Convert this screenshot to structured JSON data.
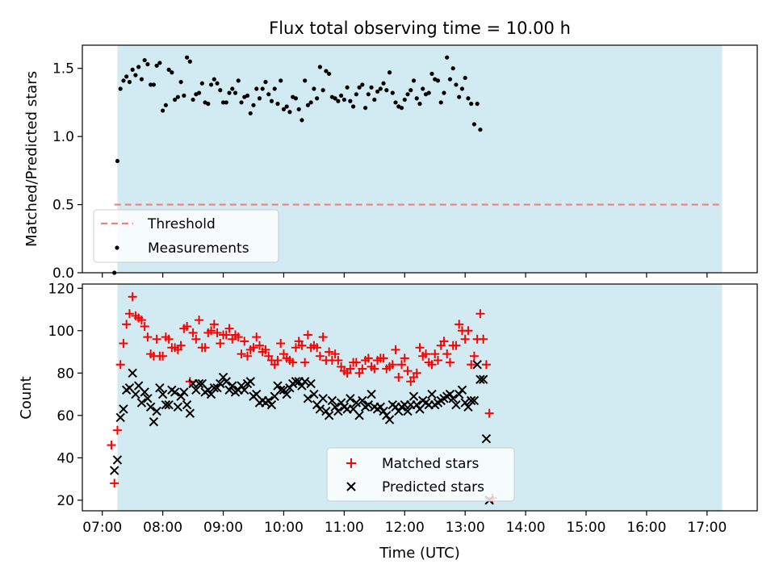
{
  "title": "Flux total observing time = 10.00 h",
  "xlabel": "Time (UTC)",
  "x_ticks": [
    "07:00",
    "08:00",
    "09:00",
    "10:00",
    "11:00",
    "12:00",
    "13:00",
    "14:00",
    "15:00",
    "16:00",
    "17:00"
  ],
  "colors": {
    "shade": "#add8e6",
    "threshold": "#f08080",
    "matched": "#ff0000",
    "predicted": "#000000",
    "points": "#000000"
  },
  "chart_data": [
    {
      "type": "scatter",
      "panel": "top",
      "ylabel": "Matched/Predicted stars",
      "xlim_hours": [
        6.67,
        17.83
      ],
      "ylim": [
        0,
        1.67
      ],
      "y_ticks": [
        "0.0",
        "0.5",
        "1.0",
        "1.5"
      ],
      "y_tick_values": [
        0,
        0.5,
        1.0,
        1.5
      ],
      "shaded_span_hours": [
        7.25,
        17.25
      ],
      "threshold": 0.5,
      "threshold_span_hours": [
        7.2,
        17.25
      ],
      "legend": [
        "Threshold",
        "Measurements"
      ],
      "legend_loc": "lower-left",
      "series": [
        {
          "name": "Measurements",
          "start_hour": 7.2,
          "step_hour": 0.05,
          "y": [
            0.0,
            0.82,
            1.35,
            1.41,
            1.44,
            1.4,
            1.49,
            1.45,
            1.51,
            1.42,
            1.56,
            1.53,
            1.38,
            1.38,
            1.52,
            1.54,
            1.19,
            1.23,
            1.49,
            1.47,
            1.27,
            1.29,
            1.4,
            1.3,
            1.58,
            1.55,
            1.27,
            1.31,
            1.32,
            1.39,
            1.25,
            1.24,
            1.38,
            1.42,
            1.39,
            1.34,
            1.25,
            1.25,
            1.32,
            1.35,
            1.32,
            1.41,
            1.25,
            1.29,
            1.3,
            1.17,
            1.23,
            1.35,
            1.28,
            1.35,
            1.4,
            1.31,
            1.26,
            1.35,
            1.24,
            1.41,
            1.2,
            1.22,
            1.18,
            1.29,
            1.28,
            1.2,
            1.12,
            1.41,
            1.23,
            1.25,
            1.35,
            1.28,
            1.51,
            1.34,
            1.48,
            1.46,
            1.29,
            1.28,
            1.26,
            1.3,
            1.27,
            1.36,
            1.26,
            1.22,
            1.31,
            1.36,
            1.38,
            1.21,
            1.31,
            1.36,
            1.27,
            1.33,
            1.35,
            1.39,
            1.34,
            1.47,
            1.32,
            1.25,
            1.22,
            1.21,
            1.27,
            1.31,
            1.34,
            1.41,
            1.28,
            1.24,
            1.35,
            1.31,
            1.32,
            1.46,
            1.42,
            1.41,
            1.25,
            1.32,
            1.58,
            1.42,
            1.5,
            1.38,
            1.29,
            1.35,
            1.43,
            1.28,
            1.24,
            1.09,
            1.24,
            1.05
          ]
        }
      ]
    },
    {
      "type": "scatter",
      "panel": "bottom",
      "ylabel": "Count",
      "xlim_hours": [
        6.67,
        17.83
      ],
      "ylim": [
        15,
        122
      ],
      "y_ticks": [
        "20",
        "40",
        "60",
        "80",
        "100",
        "120"
      ],
      "y_tick_values": [
        20,
        40,
        60,
        80,
        100,
        120
      ],
      "shaded_span_hours": [
        7.25,
        17.25
      ],
      "legend": [
        "Matched stars",
        "Predicted stars"
      ],
      "legend_loc": "lower-center",
      "series": [
        {
          "name": "Matched stars",
          "marker": "+",
          "start_hour": 7.15,
          "step_hour": 0.05,
          "y": [
            46,
            28,
            53,
            84,
            94,
            103,
            108,
            116,
            107,
            106,
            105,
            102,
            97,
            89,
            88,
            96,
            88,
            88,
            97,
            96,
            92,
            92,
            91,
            93,
            101,
            102,
            76,
            99,
            96,
            105,
            92,
            92,
            99,
            100,
            103,
            99,
            94,
            98,
            98,
            101,
            96,
            98,
            97,
            89,
            95,
            88,
            91,
            92,
            97,
            93,
            90,
            91,
            88,
            86,
            84,
            86,
            94,
            89,
            87,
            86,
            85,
            92,
            95,
            93,
            85,
            98,
            92,
            93,
            92,
            88,
            97,
            86,
            90,
            86,
            89,
            86,
            83,
            81,
            80,
            82,
            85,
            85,
            80,
            82,
            86,
            87,
            83,
            82,
            86,
            87,
            87,
            82,
            83,
            84,
            91,
            78,
            84,
            87,
            81,
            76,
            78,
            80,
            92,
            88,
            89,
            85,
            84,
            89,
            86,
            93,
            95,
            89,
            85,
            93,
            93,
            103,
            100,
            96,
            100,
            84,
            88,
            96,
            108,
            96,
            84,
            61,
            21
          ]
        },
        {
          "name": "Predicted stars",
          "marker": "x",
          "start_hour": 7.2,
          "step_hour": 0.05,
          "y": [
            34,
            39,
            59,
            63,
            72,
            73,
            80,
            70,
            74,
            66,
            71,
            68,
            64,
            57,
            62,
            73,
            70,
            65,
            65,
            72,
            71,
            64,
            69,
            71,
            65,
            61,
            75,
            72,
            75,
            75,
            71,
            72,
            70,
            73,
            73,
            75,
            78,
            76,
            72,
            74,
            71,
            72,
            74,
            72,
            75,
            76,
            69,
            70,
            66,
            67,
            66,
            67,
            65,
            69,
            74,
            72,
            72,
            70,
            73,
            75,
            76,
            76,
            74,
            76,
            68,
            75,
            70,
            65,
            63,
            68,
            62,
            60,
            67,
            64,
            62,
            66,
            64,
            63,
            68,
            63,
            66,
            60,
            67,
            64,
            65,
            70,
            64,
            63,
            64,
            62,
            60,
            58,
            65,
            64,
            62,
            64,
            65,
            62,
            65,
            69,
            65,
            63,
            67,
            66,
            65,
            70,
            65,
            66,
            67,
            68,
            69,
            70,
            68,
            65,
            70,
            72,
            66,
            64,
            67,
            67,
            84,
            77,
            77,
            49,
            20
          ]
        }
      ]
    }
  ]
}
